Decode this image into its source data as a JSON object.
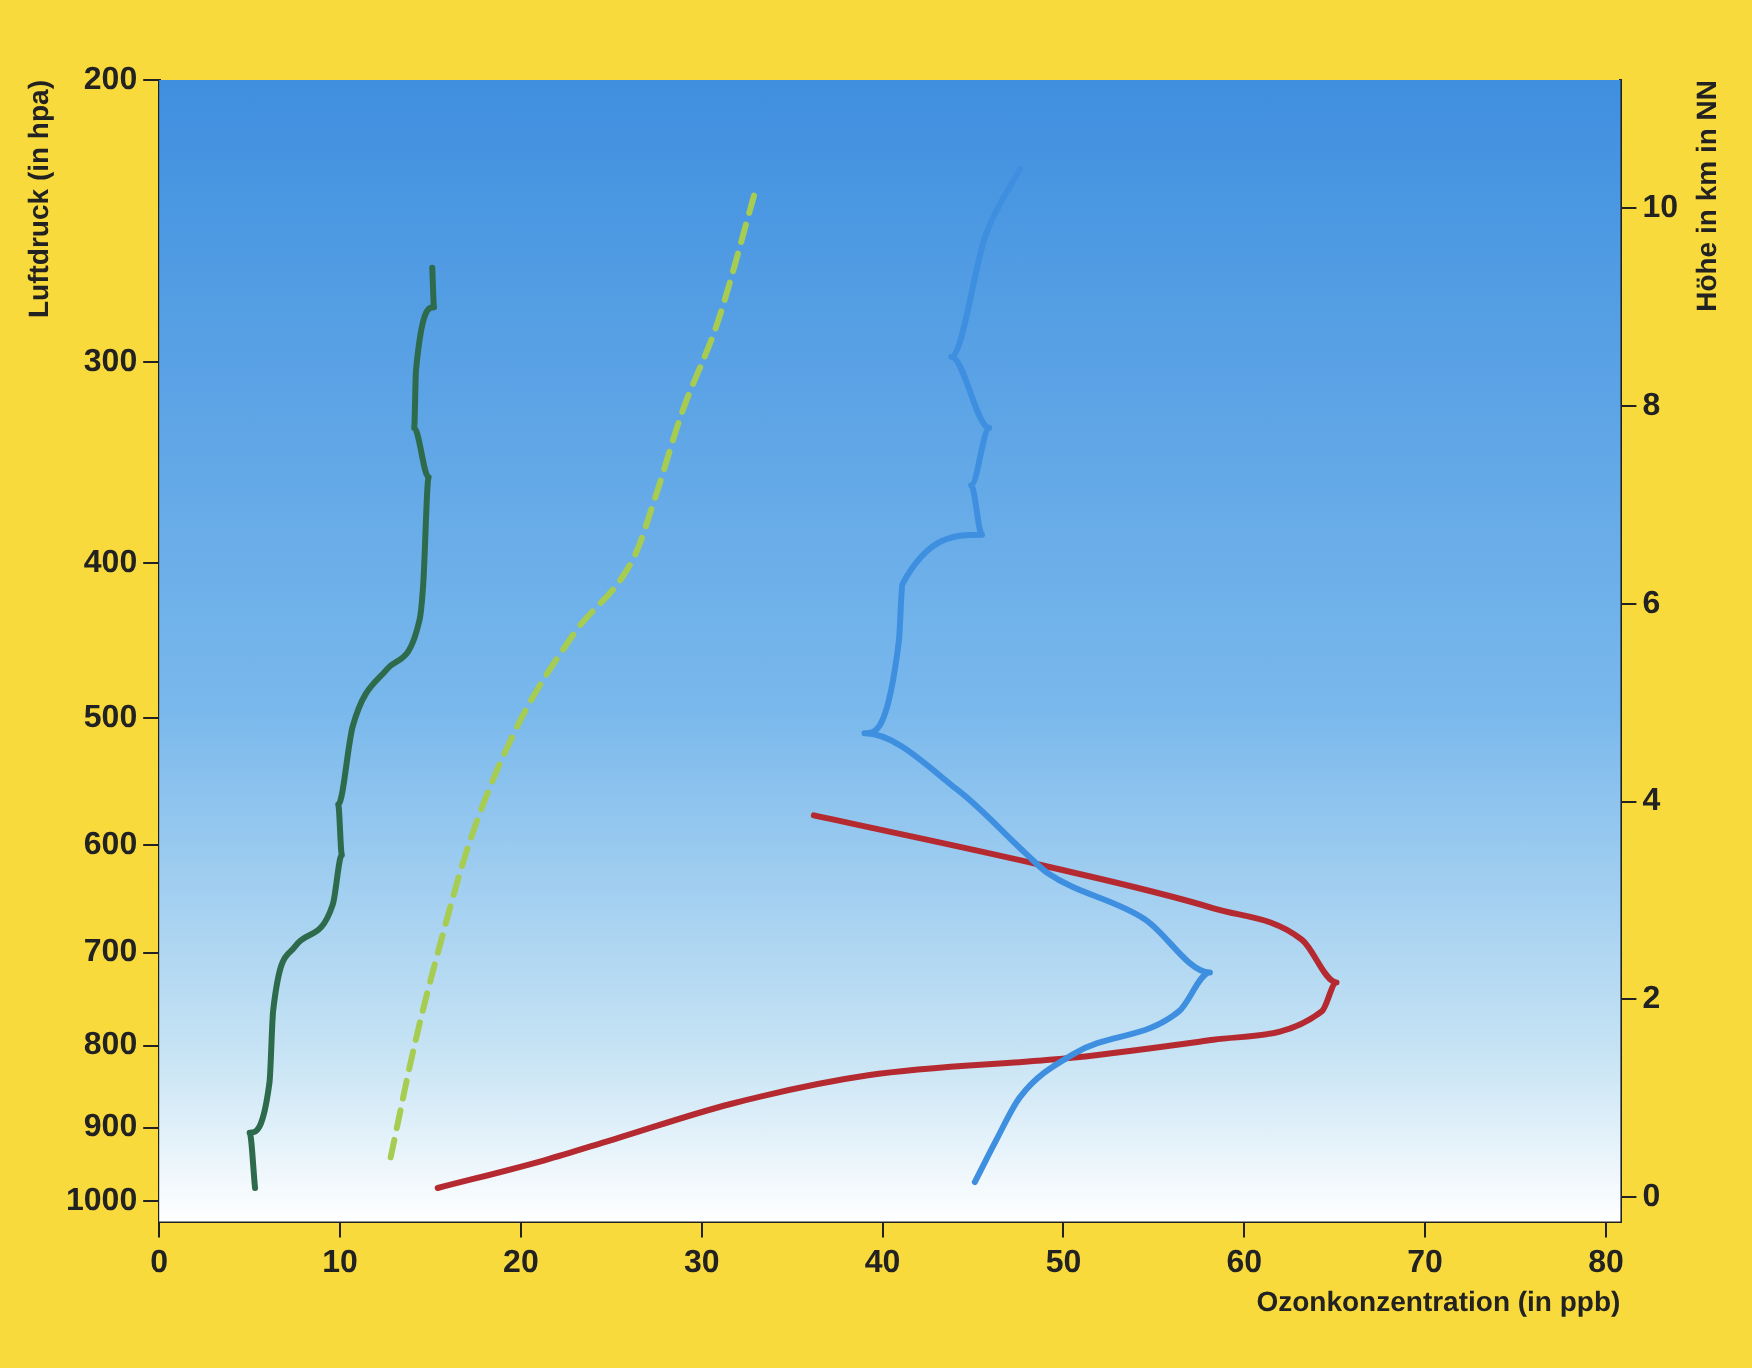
{
  "chart_data": {
    "type": "line",
    "xlabel": "Ozonkonzentration (in ppb)",
    "ylabel": "Luftdruck (in hpa)",
    "y2label": "Höhe in km in NN",
    "xlim": [
      0,
      80.8
    ],
    "xticks": [
      0,
      10,
      20,
      30,
      40,
      50,
      60,
      70,
      80
    ],
    "ylim": [
      1030,
      200
    ],
    "yticks": [
      1000,
      900,
      800,
      700,
      600,
      500,
      400,
      300,
      200
    ],
    "log": "y",
    "y2lim": [
      -0.25,
      11.3
    ],
    "y2ticks": [
      0,
      2,
      4,
      6,
      8,
      10
    ],
    "grid": false,
    "legend": false,
    "marker": "none",
    "series": [
      {
        "color": "#2e6b4c",
        "axis": "y2",
        "line_style": "solid",
        "x": [
          5.3,
          5.0,
          6.1,
          6.3,
          7.5,
          9.6,
          10.1,
          9.9,
          10.7,
          12.6,
          14.4,
          14.6,
          14.9,
          14.1,
          14.2,
          15.2,
          15.1
        ],
        "values": [
          0.09,
          0.65,
          1.16,
          1.88,
          2.53,
          2.96,
          3.46,
          3.97,
          4.76,
          5.34,
          5.84,
          6.2,
          7.28,
          7.78,
          8.36,
          9.0,
          9.4
        ]
      },
      {
        "color": "#a6cc52",
        "axis": "y2",
        "line_style": "dashed",
        "x": [
          12.8,
          14.1,
          15.6,
          17.2,
          19.8,
          22.9,
          26.3,
          27.4,
          28.9,
          30.9,
          33.0
        ],
        "values": [
          0.4,
          1.52,
          2.6,
          3.61,
          4.76,
          5.69,
          6.49,
          7.06,
          7.93,
          8.86,
          10.2
        ]
      },
      {
        "color": "#3f8fe0",
        "axis": "y2",
        "line_style": "solid",
        "x": [
          45.1,
          46.3,
          47.6,
          50.6,
          56.4,
          58.1,
          54.5,
          49.1,
          48.0,
          44.2,
          39.0,
          40.9,
          41.1,
          45.5,
          44.9,
          45.9,
          43.8,
          45.7,
          47.6
        ],
        "values": [
          0.15,
          0.58,
          1.01,
          1.45,
          1.88,
          2.27,
          2.81,
          3.28,
          3.46,
          4.11,
          4.69,
          5.62,
          6.2,
          6.7,
          7.2,
          7.78,
          8.5,
          9.73,
          10.4
        ]
      },
      {
        "color": "#b52a30",
        "axis": "y2",
        "line_style": "solid",
        "x": [
          15.4,
          21.3,
          25.1,
          31.6,
          39.2,
          50.6,
          58.3,
          64.3,
          65.1,
          63.2,
          58.3,
          48.7,
          36.2
        ],
        "values": [
          0.09,
          0.37,
          0.58,
          0.94,
          1.23,
          1.41,
          1.59,
          1.88,
          2.17,
          2.6,
          2.92,
          3.36,
          3.86
        ]
      }
    ]
  }
}
